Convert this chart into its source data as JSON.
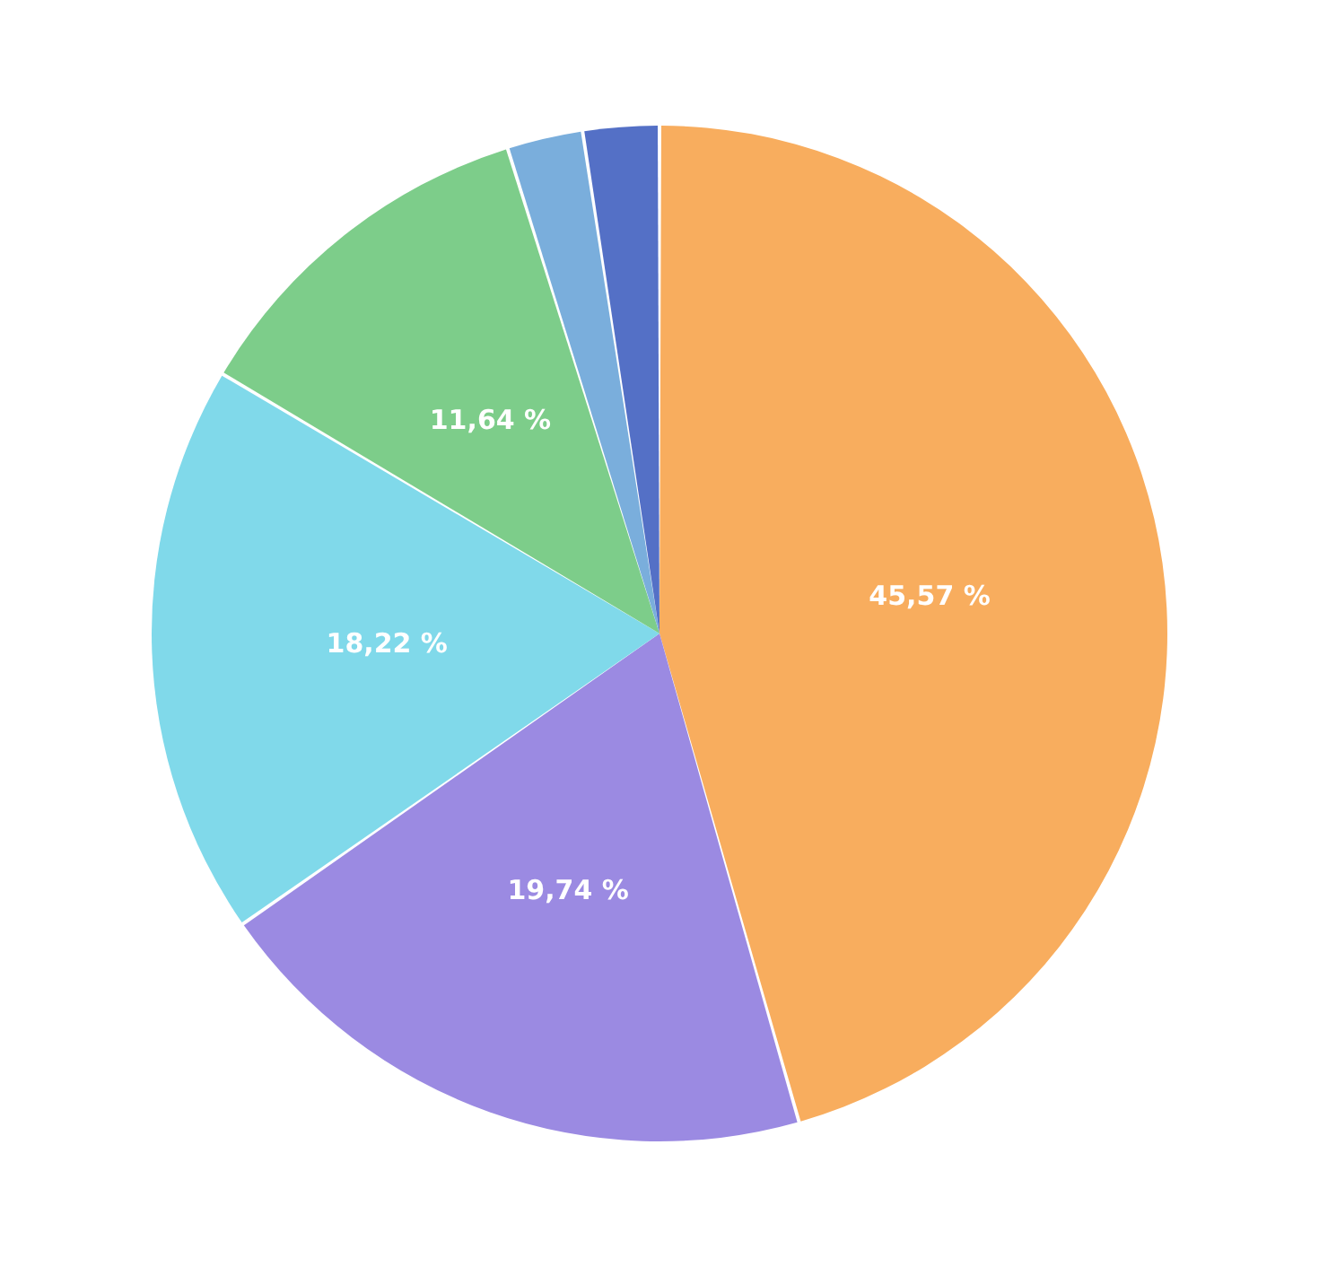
{
  "chart_data": {
    "type": "pie",
    "categories": [
      null,
      null,
      null,
      null,
      null,
      null
    ],
    "values": [
      45.57,
      19.74,
      18.22,
      11.64,
      2.41,
      2.42
    ],
    "colors": [
      "#f8ad5e",
      "#9b8ae2",
      "#80d9ea",
      "#7dcd8a",
      "#7aaedc",
      "#5470c6"
    ],
    "value_labels": [
      "45,57 %",
      "19,74 %",
      "18,22 %",
      "11,64 %",
      null,
      null
    ]
  }
}
